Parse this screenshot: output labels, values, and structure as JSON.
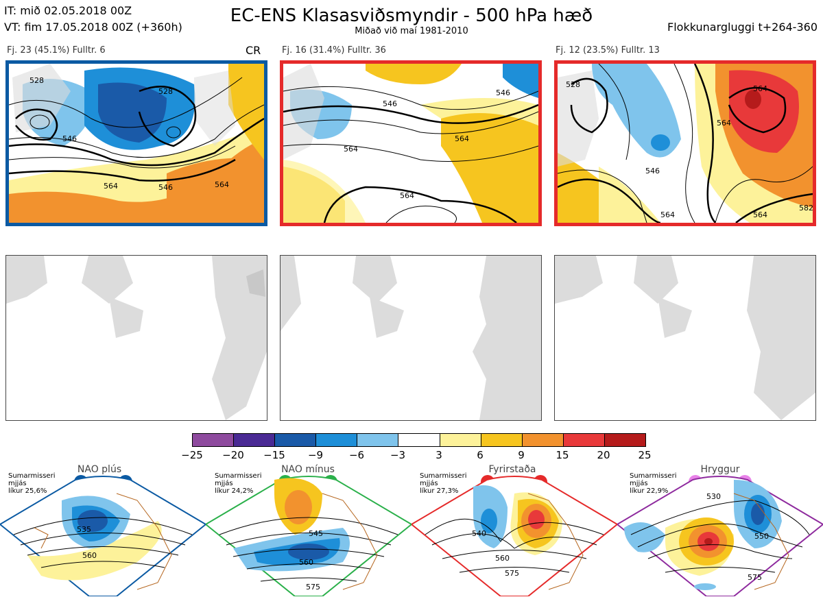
{
  "header": {
    "it": "IT: mið 02.05.2018 00Z",
    "vt": "VT: fim 17.05.2018 00Z  (+360h)",
    "title": "EC-ENS Klasasviðsmyndir - 500 hPa hæð",
    "subtitle": "Miðað við maí 1981-2010",
    "window": "Flokkunargluggi t+264-360"
  },
  "clusters": [
    {
      "label": "Fj. 23 (45.1%)   Fulltr. 6",
      "frame_color": "#0b5aa3",
      "contours": [
        "528",
        "528",
        "546",
        "546",
        "564",
        "564"
      ]
    },
    {
      "label": "Fj. 16 (31.4%)   Fulltr. 36",
      "frame_color": "#e52a2a",
      "contours": [
        "546",
        "546",
        "564",
        "564",
        "564"
      ]
    },
    {
      "label": "Fj. 12 (23.5%)   Fulltr. 13",
      "frame_color": "#e52a2a",
      "contours": [
        "528",
        "564",
        "564",
        "546",
        "564",
        "564",
        "582"
      ]
    }
  ],
  "cr_label": "CR",
  "colorbar": {
    "colors": [
      "#8e4a9e",
      "#4a2a94",
      "#1a5aa8",
      "#1e8fd8",
      "#7fc4ec",
      "#ffffff",
      "#fdf29a",
      "#f6c51f",
      "#f2922e",
      "#e8393a",
      "#b51b1b"
    ],
    "ticks": [
      "−25",
      "−20",
      "−15",
      "−9",
      "−6",
      "−3",
      "3",
      "6",
      "9",
      "15",
      "20",
      "25"
    ]
  },
  "regimes": [
    {
      "name": "NAO plús",
      "note": [
        "Sumarmisseri",
        "mjjás",
        "líkur 25,6%"
      ],
      "color": "#0b5aa3",
      "labels": [
        "535",
        "560"
      ]
    },
    {
      "name": "NAO mínus",
      "note": [
        "Sumarmisseri",
        "mjjás",
        "líkur 24,2%"
      ],
      "color": "#2ab04a",
      "labels": [
        "545",
        "560",
        "575"
      ]
    },
    {
      "name": "Fyrirstaða",
      "note": [
        "Sumarmisseri",
        "mjjás",
        "líkur 27,3%"
      ],
      "color": "#e52a2a",
      "labels": [
        "540",
        "560",
        "575"
      ]
    },
    {
      "name": "Hryggur",
      "note": [
        "Sumarmisseri",
        "mjjás",
        "líkur 22,9%"
      ],
      "color": "#8e2a9e",
      "labels": [
        "530",
        "550",
        "575"
      ]
    }
  ]
}
